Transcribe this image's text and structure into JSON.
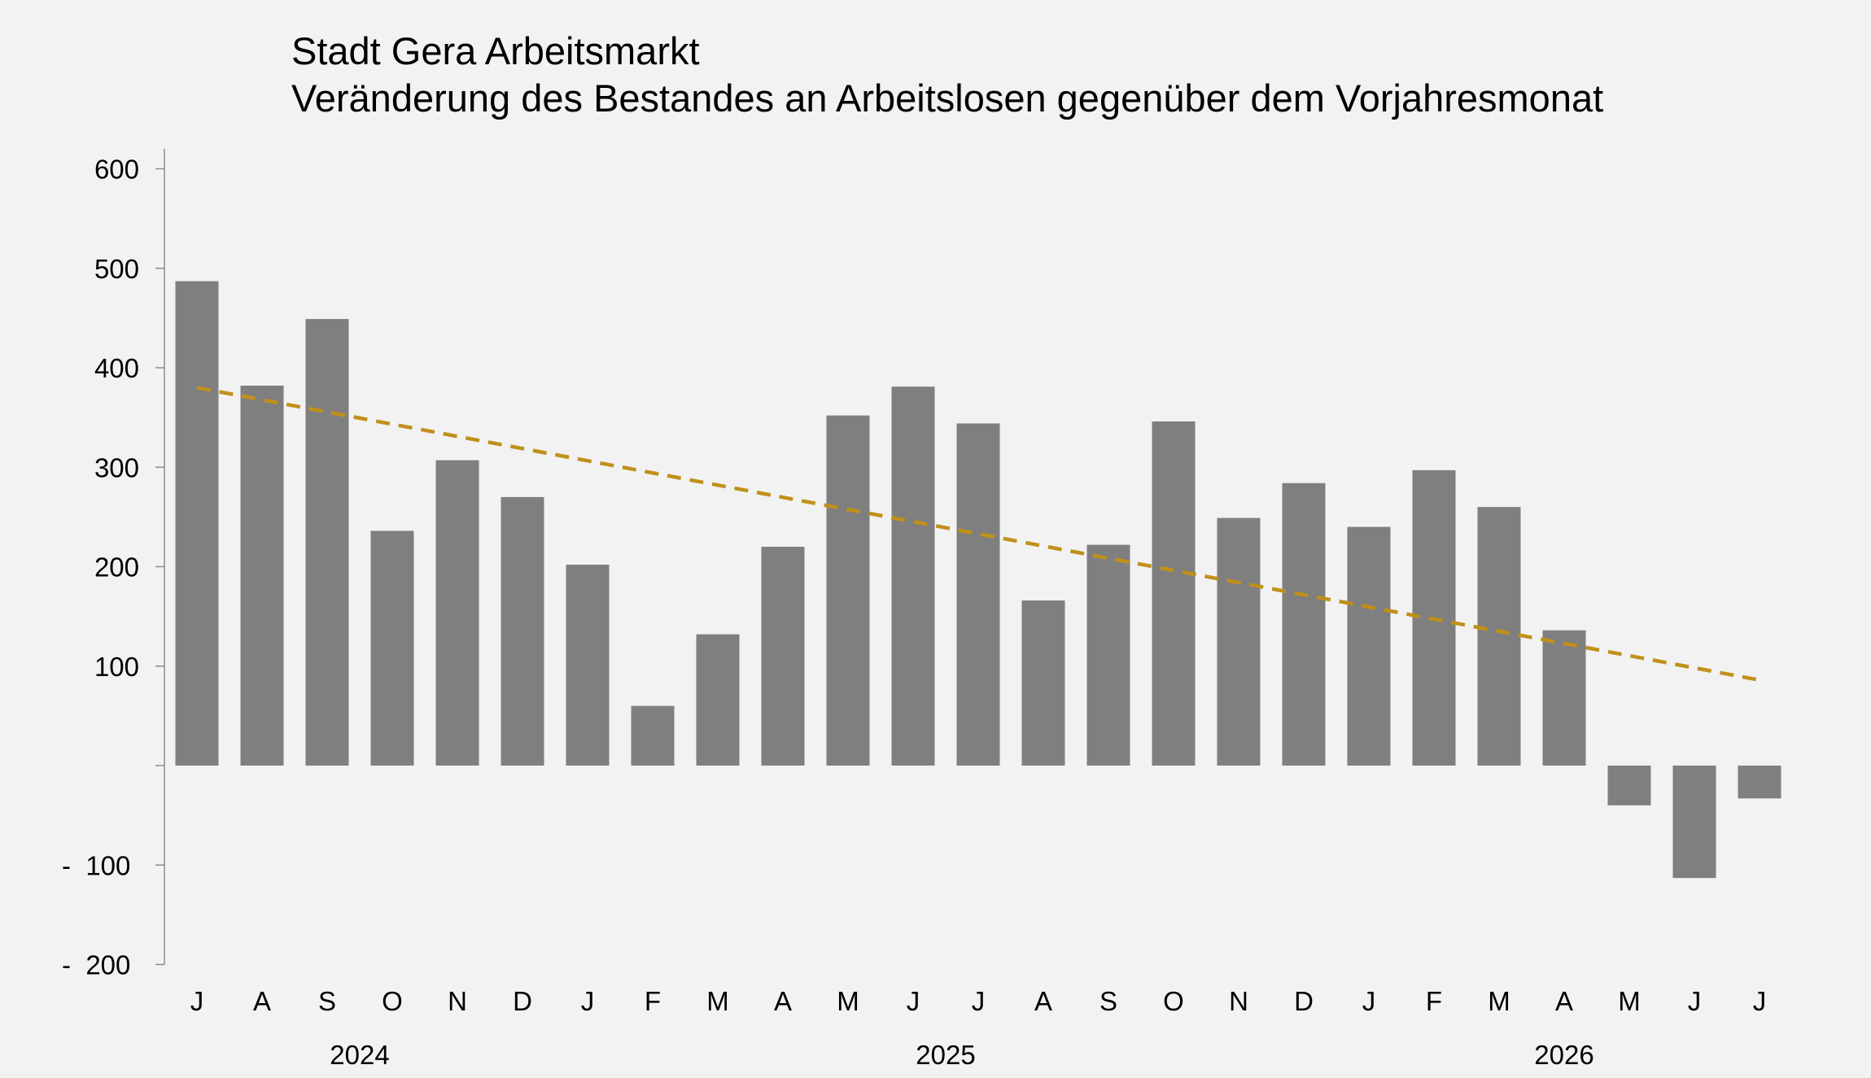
{
  "chart_data": {
    "type": "bar",
    "title": "Stadt Gera Arbeitsmarkt",
    "subtitle": "Veränderung des Bestandes an Arbeitslosen gegenüber dem Vorjahresmonat",
    "xlabel": "",
    "ylabel": "",
    "ylim": [
      -200,
      600
    ],
    "yticks": [
      600,
      500,
      400,
      300,
      200,
      100,
      -100,
      -200
    ],
    "ytick_labels": [
      "600",
      "500",
      "400",
      "300",
      "200",
      "100",
      "-  100",
      "-  200"
    ],
    "categories": [
      "J",
      "A",
      "S",
      "O",
      "N",
      "D",
      "J",
      "F",
      "M",
      "A",
      "M",
      "J",
      "J",
      "A",
      "S",
      "O",
      "N",
      "D",
      "J",
      "F",
      "M",
      "A",
      "M",
      "J",
      "J"
    ],
    "series": [
      {
        "values": [
          487,
          382,
          449,
          236,
          307,
          270,
          202,
          60,
          132,
          220,
          352,
          381,
          344,
          166,
          222,
          346,
          249,
          284,
          240,
          297,
          260,
          136,
          -40,
          -113,
          -33
        ]
      }
    ],
    "trend": {
      "start": 380,
      "end": 86,
      "style": "dashed"
    },
    "year_labels": [
      {
        "label": "2024",
        "category_index": 2.5
      },
      {
        "label": "2025",
        "category_index": 11.5
      },
      {
        "label": "2026",
        "category_index": 21
      }
    ],
    "grid": false,
    "legend": "none",
    "colors": {
      "bar": "#7f7f7f",
      "trend": "#c0901a",
      "axis": "#8c8c8c",
      "background": "#f2f2f2"
    }
  }
}
